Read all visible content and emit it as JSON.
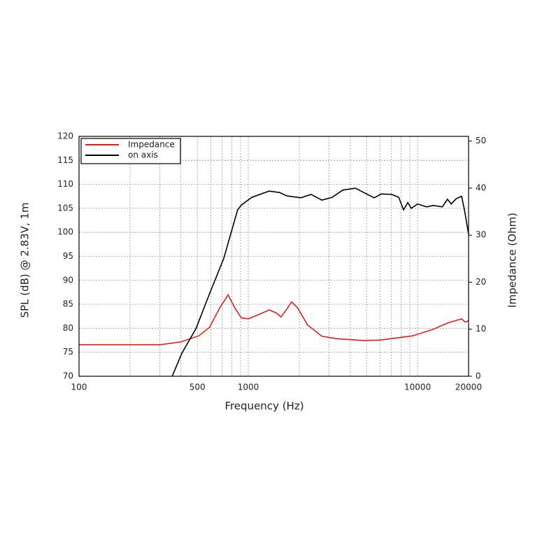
{
  "chart_data": {
    "type": "line",
    "x_label": "Frequency (Hz)",
    "y_label": "SPL (dB) @ 2.83V, 1m",
    "y2_label": "Impedance (Ohm)",
    "log_x": true,
    "grid": true,
    "legend_position": "top-left",
    "xlim": [
      100,
      20000
    ],
    "xticks": [
      100,
      500,
      1000,
      10000,
      20000
    ],
    "xminorticks": [
      200,
      300,
      400,
      600,
      700,
      800,
      900,
      2000,
      3000,
      4000,
      5000,
      6000,
      7000,
      8000,
      9000
    ],
    "ylim": [
      70,
      120
    ],
    "yticks": [
      70,
      75,
      80,
      85,
      90,
      95,
      100,
      105,
      110,
      115,
      120
    ],
    "y2lim": [
      0,
      51
    ],
    "y2ticks": [
      0,
      10,
      20,
      30,
      40,
      50
    ],
    "series": [
      {
        "name": "Impedance",
        "color": "#e0201b",
        "axis": "y2",
        "x": [
          100,
          300,
          400,
          510,
          590,
          680,
          760,
          830,
          910,
          1000,
          1150,
          1330,
          1460,
          1560,
          1690,
          1800,
          1950,
          2240,
          2720,
          3290,
          4800,
          6100,
          7000,
          9350,
          12400,
          15000,
          18200,
          19100,
          20000
        ],
        "values": [
          6.7,
          6.7,
          7.3,
          8.6,
          10.4,
          14.6,
          17.3,
          14.6,
          12.4,
          12.2,
          13.1,
          14.1,
          13.5,
          12.6,
          14.3,
          15.8,
          14.6,
          10.9,
          8.5,
          8.0,
          7.6,
          7.7,
          8.0,
          8.6,
          10.0,
          11.3,
          12.2,
          11.5,
          11.8
        ]
      },
      {
        "name": "on axis",
        "color": "#000000",
        "axis": "y",
        "x": [
          355,
          405,
          490,
          590,
          715,
          865,
          910,
          1050,
          1330,
          1530,
          1690,
          2040,
          2350,
          2720,
          3130,
          3610,
          4290,
          4810,
          5540,
          6100,
          7030,
          7730,
          8260,
          8750,
          9180,
          10000,
          11300,
          12400,
          14000,
          15000,
          15800,
          16900,
          18200,
          18900,
          20000
        ],
        "values": [
          70,
          74.8,
          79.9,
          87.2,
          94.5,
          104.7,
          105.7,
          107.3,
          108.6,
          108.3,
          107.6,
          107.2,
          107.9,
          106.7,
          107.3,
          108.8,
          109.2,
          108.3,
          107.2,
          108.0,
          107.9,
          107.3,
          104.7,
          106.2,
          105.0,
          105.9,
          105.3,
          105.6,
          105.3,
          106.9,
          105.9,
          107.0,
          107.5,
          104.7,
          99.6
        ]
      }
    ]
  }
}
